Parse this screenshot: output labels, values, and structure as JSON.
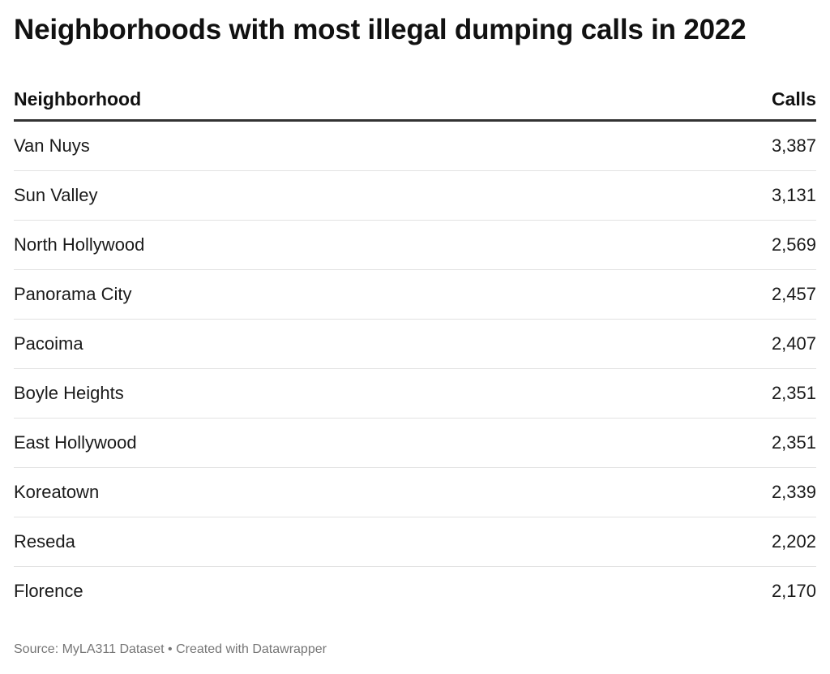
{
  "title": "Neighborhoods with most illegal dumping calls in 2022",
  "table": {
    "headers": {
      "neighborhood": "Neighborhood",
      "calls": "Calls"
    }
  },
  "footer": {
    "source": "Source: MyLA311 Dataset • Created with Datawrapper"
  },
  "chart_data": {
    "type": "table",
    "title": "Neighborhoods with most illegal dumping calls in 2022",
    "columns": [
      "Neighborhood",
      "Calls"
    ],
    "rows": [
      {
        "neighborhood": "Van Nuys",
        "calls": "3,387"
      },
      {
        "neighborhood": "Sun Valley",
        "calls": "3,131"
      },
      {
        "neighborhood": "North Hollywood",
        "calls": "2,569"
      },
      {
        "neighborhood": "Panorama City",
        "calls": "2,457"
      },
      {
        "neighborhood": "Pacoima",
        "calls": "2,407"
      },
      {
        "neighborhood": "Boyle Heights",
        "calls": "2,351"
      },
      {
        "neighborhood": "East Hollywood",
        "calls": "2,351"
      },
      {
        "neighborhood": "Koreatown",
        "calls": "2,339"
      },
      {
        "neighborhood": "Reseda",
        "calls": "2,202"
      },
      {
        "neighborhood": "Florence",
        "calls": "2,170"
      }
    ]
  }
}
